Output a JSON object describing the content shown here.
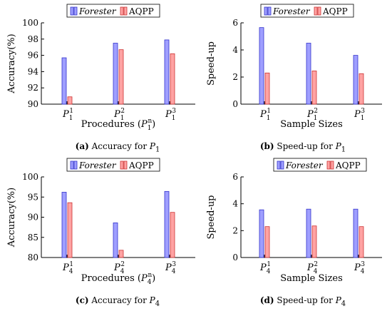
{
  "colors": {
    "forester": "#9f9fff",
    "aqpp": "#ffa3a3",
    "forester_edge": "#3333cc",
    "aqpp_edge": "#cc3333"
  },
  "legend_names": [
    "Forester",
    "AQPP"
  ],
  "captions": [
    {
      "tag": "(a)",
      "text": "Accuracy for ",
      "var": "P",
      "sub": "1"
    },
    {
      "tag": "(b)",
      "text": "Speed-up for ",
      "var": "P",
      "sub": "1"
    },
    {
      "tag": "(c)",
      "text": "Accuracy for ",
      "var": "P",
      "sub": "4"
    },
    {
      "tag": "(d)",
      "text": "Speed-up for ",
      "var": "P",
      "sub": "4"
    }
  ],
  "chart_data": [
    {
      "type": "bar",
      "categories": [
        "P_1^1",
        "P_1^2",
        "P_1^3"
      ],
      "series": [
        {
          "name": "Forester",
          "values": [
            95.7,
            97.5,
            97.9
          ]
        },
        {
          "name": "AQPP",
          "values": [
            90.9,
            96.7,
            96.2
          ]
        }
      ],
      "ylabel": "Accuracy(%)",
      "xlabel": "Procedures (P_1^n)",
      "ylim": [
        90,
        100
      ],
      "yticks": [
        90,
        92,
        94,
        96,
        98,
        100
      ],
      "legend": "top"
    },
    {
      "type": "bar",
      "categories": [
        "P_1^1",
        "P_1^2",
        "P_1^3"
      ],
      "series": [
        {
          "name": "Forester",
          "values": [
            5.65,
            4.5,
            3.6
          ]
        },
        {
          "name": "AQPP",
          "values": [
            2.3,
            2.45,
            2.25
          ]
        }
      ],
      "ylabel": "Speed-up",
      "xlabel": "Sample Sizes",
      "ylim": [
        0,
        6
      ],
      "yticks": [
        0,
        2,
        4,
        6
      ],
      "legend": "top"
    },
    {
      "type": "bar",
      "categories": [
        "P_4^1",
        "P_4^2",
        "P_4^3"
      ],
      "series": [
        {
          "name": "Forester",
          "values": [
            96.2,
            88.6,
            96.4
          ]
        },
        {
          "name": "AQPP",
          "values": [
            93.6,
            81.8,
            91.2
          ]
        }
      ],
      "ylabel": "Accuracy(%)",
      "xlabel": "Procedures (P_4^n)",
      "ylim": [
        80,
        100
      ],
      "yticks": [
        80,
        85,
        90,
        95,
        100
      ],
      "legend": "top"
    },
    {
      "type": "bar",
      "categories": [
        "P_4^1",
        "P_4^2",
        "P_4^3"
      ],
      "series": [
        {
          "name": "Forester",
          "values": [
            3.55,
            3.6,
            3.6
          ]
        },
        {
          "name": "AQPP",
          "values": [
            2.3,
            2.35,
            2.3
          ]
        }
      ],
      "ylabel": "Speed-up",
      "xlabel": "Sample Sizes",
      "ylim": [
        0,
        6
      ],
      "yticks": [
        0,
        2,
        4,
        6
      ],
      "legend": "top"
    }
  ]
}
